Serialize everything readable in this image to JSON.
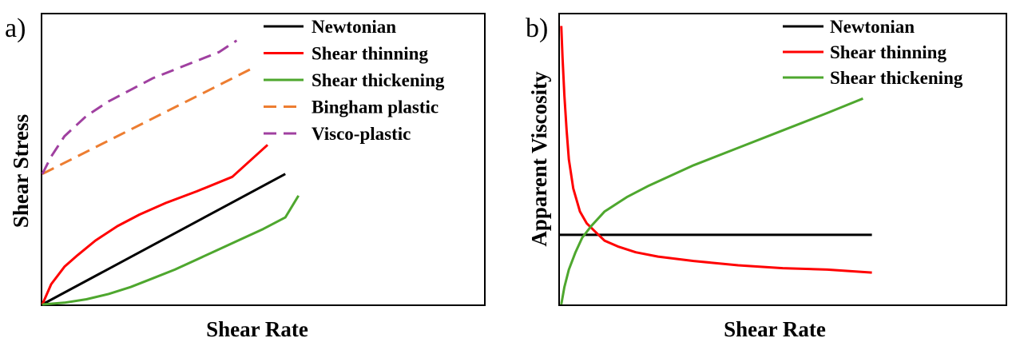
{
  "colors": {
    "newtonian": "#000000",
    "shear_thinning": "#ff0000",
    "shear_thickening": "#4ea72e",
    "bingham_plastic": "#ed7d31",
    "visco_plastic": "#a040a0",
    "axes": "#000000",
    "background": "#ffffff"
  },
  "chart_data": [
    {
      "panel": "a)",
      "type": "line",
      "title": "",
      "xlabel": "Shear Rate",
      "ylabel": "Shear Stress",
      "xlim": [
        0,
        1
      ],
      "ylim": [
        0,
        1
      ],
      "ticks": false,
      "grid": false,
      "legend_position": "top-right",
      "series": [
        {
          "name": "Newtonian",
          "color": "#000000",
          "dash": "solid",
          "x": [
            0,
            0.55
          ],
          "y": [
            0,
            0.45
          ]
        },
        {
          "name": "Shear thinning",
          "color": "#ff0000",
          "dash": "solid",
          "x": [
            0,
            0.02,
            0.05,
            0.08,
            0.12,
            0.17,
            0.22,
            0.28,
            0.35,
            0.43,
            0.51
          ],
          "y": [
            0,
            0.07,
            0.13,
            0.17,
            0.22,
            0.27,
            0.31,
            0.35,
            0.39,
            0.44,
            0.55
          ]
        },
        {
          "name": "Shear thickening",
          "color": "#4ea72e",
          "dash": "solid",
          "x": [
            0,
            0.05,
            0.1,
            0.15,
            0.2,
            0.25,
            0.3,
            0.35,
            0.4,
            0.45,
            0.5,
            0.55,
            0.58
          ],
          "y": [
            0,
            0.006,
            0.018,
            0.036,
            0.06,
            0.09,
            0.12,
            0.155,
            0.19,
            0.225,
            0.26,
            0.3,
            0.375
          ]
        },
        {
          "name": "Bingham plastic",
          "color": "#ed7d31",
          "dash": "dashed",
          "x": [
            0,
            0.47
          ],
          "y": [
            0.45,
            0.81
          ]
        },
        {
          "name": "Visco-plastic",
          "color": "#a040a0",
          "dash": "dashed",
          "x": [
            0,
            0.02,
            0.05,
            0.1,
            0.15,
            0.2,
            0.25,
            0.3,
            0.35,
            0.4,
            0.44
          ],
          "y": [
            0.45,
            0.51,
            0.58,
            0.65,
            0.7,
            0.74,
            0.78,
            0.81,
            0.84,
            0.87,
            0.91
          ]
        }
      ]
    },
    {
      "panel": "b)",
      "type": "line",
      "title": "",
      "xlabel": "Shear Rate",
      "ylabel": "Apparent Viscosity",
      "xlim": [
        0,
        1
      ],
      "ylim": [
        0,
        1
      ],
      "ticks": false,
      "grid": false,
      "legend_position": "top-right",
      "series": [
        {
          "name": "Newtonian",
          "color": "#000000",
          "dash": "solid",
          "x": [
            0,
            0.7
          ],
          "y": [
            0.24,
            0.24
          ]
        },
        {
          "name": "Shear thinning",
          "color": "#ff0000",
          "dash": "solid",
          "x": [
            0.003,
            0.006,
            0.01,
            0.015,
            0.02,
            0.03,
            0.045,
            0.06,
            0.08,
            0.1,
            0.13,
            0.17,
            0.22,
            0.3,
            0.4,
            0.5,
            0.6,
            0.7
          ],
          "y": [
            0.96,
            0.85,
            0.72,
            0.6,
            0.5,
            0.4,
            0.32,
            0.28,
            0.25,
            0.22,
            0.2,
            0.18,
            0.165,
            0.15,
            0.135,
            0.125,
            0.12,
            0.11
          ]
        },
        {
          "name": "Shear thickening",
          "color": "#4ea72e",
          "dash": "solid",
          "x": [
            0.003,
            0.01,
            0.02,
            0.035,
            0.05,
            0.07,
            0.1,
            0.15,
            0.2,
            0.3,
            0.4,
            0.5,
            0.6,
            0.68
          ],
          "y": [
            0.0,
            0.06,
            0.12,
            0.18,
            0.23,
            0.27,
            0.32,
            0.37,
            0.41,
            0.48,
            0.54,
            0.6,
            0.66,
            0.71
          ]
        }
      ]
    }
  ]
}
